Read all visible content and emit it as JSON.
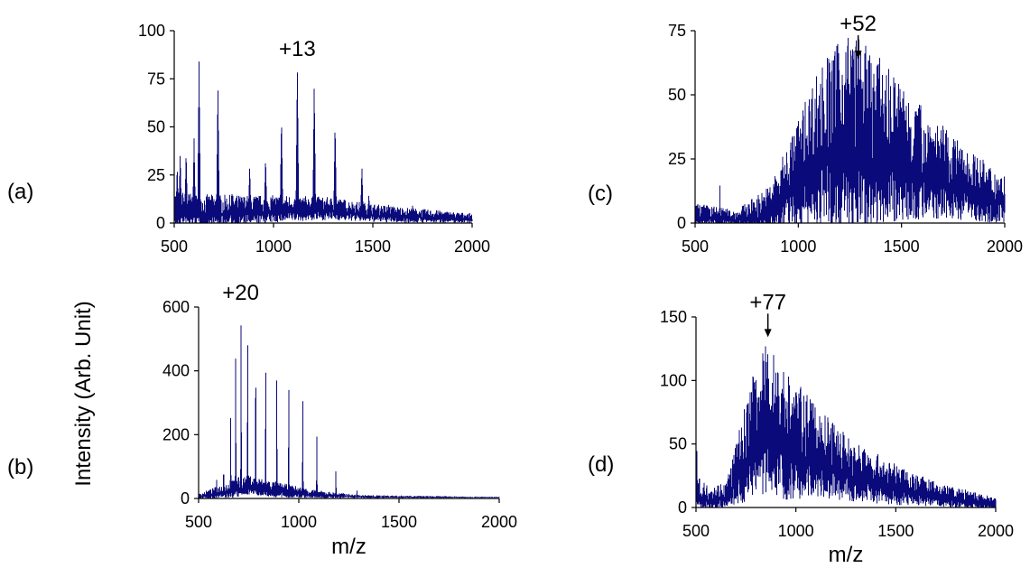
{
  "y_axis_title": "Intensity (Arb. Unit)",
  "chart_data": [
    {
      "panel_label": "(a)",
      "type": "line",
      "xlabel": "",
      "ylabel": "",
      "xlim": [
        500,
        2000
      ],
      "ylim": [
        0,
        100
      ],
      "xticks": [
        "500",
        "1000",
        "1500",
        "2000"
      ],
      "yticks": [
        "0",
        "25",
        "50",
        "75",
        "100"
      ],
      "annotation": {
        "text": "+13",
        "x": 1120,
        "arrow": false
      },
      "series": [
        {
          "color": "#0a0a7a",
          "baseline": [
            [
              500,
              5
            ],
            [
              650,
              4
            ],
            [
              900,
              5
            ],
            [
              1100,
              6
            ],
            [
              1300,
              6
            ],
            [
              1500,
              4
            ],
            [
              1700,
              3
            ],
            [
              2000,
              2
            ]
          ],
          "noise": [
            [
              500,
              12
            ],
            [
              800,
              10
            ],
            [
              1200,
              8
            ],
            [
              1500,
              6
            ],
            [
              2000,
              3
            ]
          ],
          "peaks": [
            [
              515,
              30
            ],
            [
              530,
              37
            ],
            [
              560,
              38
            ],
            [
              600,
              44
            ],
            [
              625,
              84
            ],
            [
              720,
              73
            ],
            [
              790,
              17
            ],
            [
              880,
              30
            ],
            [
              960,
              35
            ],
            [
              1040,
              56
            ],
            [
              1120,
              83
            ],
            [
              1205,
              74
            ],
            [
              1310,
              53
            ],
            [
              1445,
              30
            ],
            [
              1480,
              15
            ],
            [
              1580,
              10
            ],
            [
              1700,
              9
            ],
            [
              1820,
              7
            ]
          ],
          "peak_width": 8
        }
      ]
    },
    {
      "panel_label": "(b)",
      "type": "line",
      "xlabel": "m/z",
      "ylabel": "",
      "xlim": [
        500,
        2000
      ],
      "ylim": [
        0,
        600
      ],
      "xticks": [
        "500",
        "1000",
        "1500",
        "2000"
      ],
      "yticks": [
        "0",
        "200",
        "400",
        "600"
      ],
      "annotation": {
        "text": "+20",
        "x": 710,
        "arrow": false
      },
      "series": [
        {
          "color": "#0a0a7a",
          "baseline": [
            [
              500,
              5
            ],
            [
              650,
              20
            ],
            [
              750,
              35
            ],
            [
              900,
              20
            ],
            [
              1100,
              10
            ],
            [
              1300,
              5
            ],
            [
              2000,
              3
            ]
          ],
          "noise": [
            [
              500,
              10
            ],
            [
              700,
              40
            ],
            [
              900,
              30
            ],
            [
              1100,
              15
            ],
            [
              1300,
              6
            ],
            [
              2000,
              2
            ]
          ],
          "peaks": [
            [
              590,
              60
            ],
            [
              625,
              120
            ],
            [
              660,
              260
            ],
            [
              685,
              490
            ],
            [
              712,
              600
            ],
            [
              745,
              575
            ],
            [
              785,
              530
            ],
            [
              835,
              490
            ],
            [
              890,
              420
            ],
            [
              950,
              400
            ],
            [
              1020,
              335
            ],
            [
              1090,
              200
            ],
            [
              1185,
              95
            ],
            [
              1290,
              30
            ]
          ],
          "peak_width": 3
        }
      ]
    },
    {
      "panel_label": "(c)",
      "type": "line",
      "xlabel": "",
      "ylabel": "",
      "xlim": [
        500,
        2000
      ],
      "ylim": [
        0,
        75
      ],
      "xticks": [
        "500",
        "1000",
        "1500",
        "2000"
      ],
      "yticks": [
        "0",
        "25",
        "50",
        "75"
      ],
      "annotation": {
        "text": "+52",
        "x": 1290,
        "arrow": true
      },
      "series": [
        {
          "color": "#0a0a7a",
          "baseline": [
            [
              500,
              2
            ],
            [
              700,
              1
            ],
            [
              850,
              2
            ],
            [
              950,
              10
            ],
            [
              1100,
              22
            ],
            [
              1250,
              26
            ],
            [
              1400,
              24
            ],
            [
              1600,
              18
            ],
            [
              1800,
              12
            ],
            [
              2000,
              7
            ]
          ],
          "noise": [
            [
              500,
              6
            ],
            [
              700,
              4
            ],
            [
              900,
              15
            ],
            [
              1100,
              40
            ],
            [
              1250,
              50
            ],
            [
              1400,
              40
            ],
            [
              1600,
              28
            ],
            [
              1800,
              18
            ],
            [
              2000,
              12
            ]
          ],
          "peaks": [
            [
              530,
              8
            ],
            [
              620,
              16
            ],
            [
              1290,
              63
            ]
          ],
          "peak_width": 3
        }
      ]
    },
    {
      "panel_label": "(d)",
      "type": "line",
      "xlabel": "m/z",
      "ylabel": "",
      "xlim": [
        500,
        2000
      ],
      "ylim": [
        0,
        150
      ],
      "xticks": [
        "500",
        "1000",
        "1500",
        "2000"
      ],
      "yticks": [
        "0",
        "50",
        "100",
        "150"
      ],
      "annotation": {
        "text": "+77",
        "x": 860,
        "arrow": true
      },
      "series": [
        {
          "color": "#0a0a7a",
          "baseline": [
            [
              500,
              10
            ],
            [
              560,
              4
            ],
            [
              650,
              8
            ],
            [
              720,
              25
            ],
            [
              800,
              50
            ],
            [
              870,
              55
            ],
            [
              950,
              45
            ],
            [
              1100,
              35
            ],
            [
              1300,
              22
            ],
            [
              1500,
              14
            ],
            [
              1700,
              8
            ],
            [
              2000,
              2
            ]
          ],
          "noise": [
            [
              500,
              15
            ],
            [
              650,
              12
            ],
            [
              750,
              50
            ],
            [
              850,
              75
            ],
            [
              950,
              65
            ],
            [
              1100,
              45
            ],
            [
              1300,
              30
            ],
            [
              1500,
              20
            ],
            [
              1700,
              12
            ],
            [
              2000,
              6
            ]
          ],
          "peaks": [
            [
              505,
              53
            ],
            [
              860,
              132
            ]
          ],
          "peak_width": 3
        }
      ]
    }
  ]
}
